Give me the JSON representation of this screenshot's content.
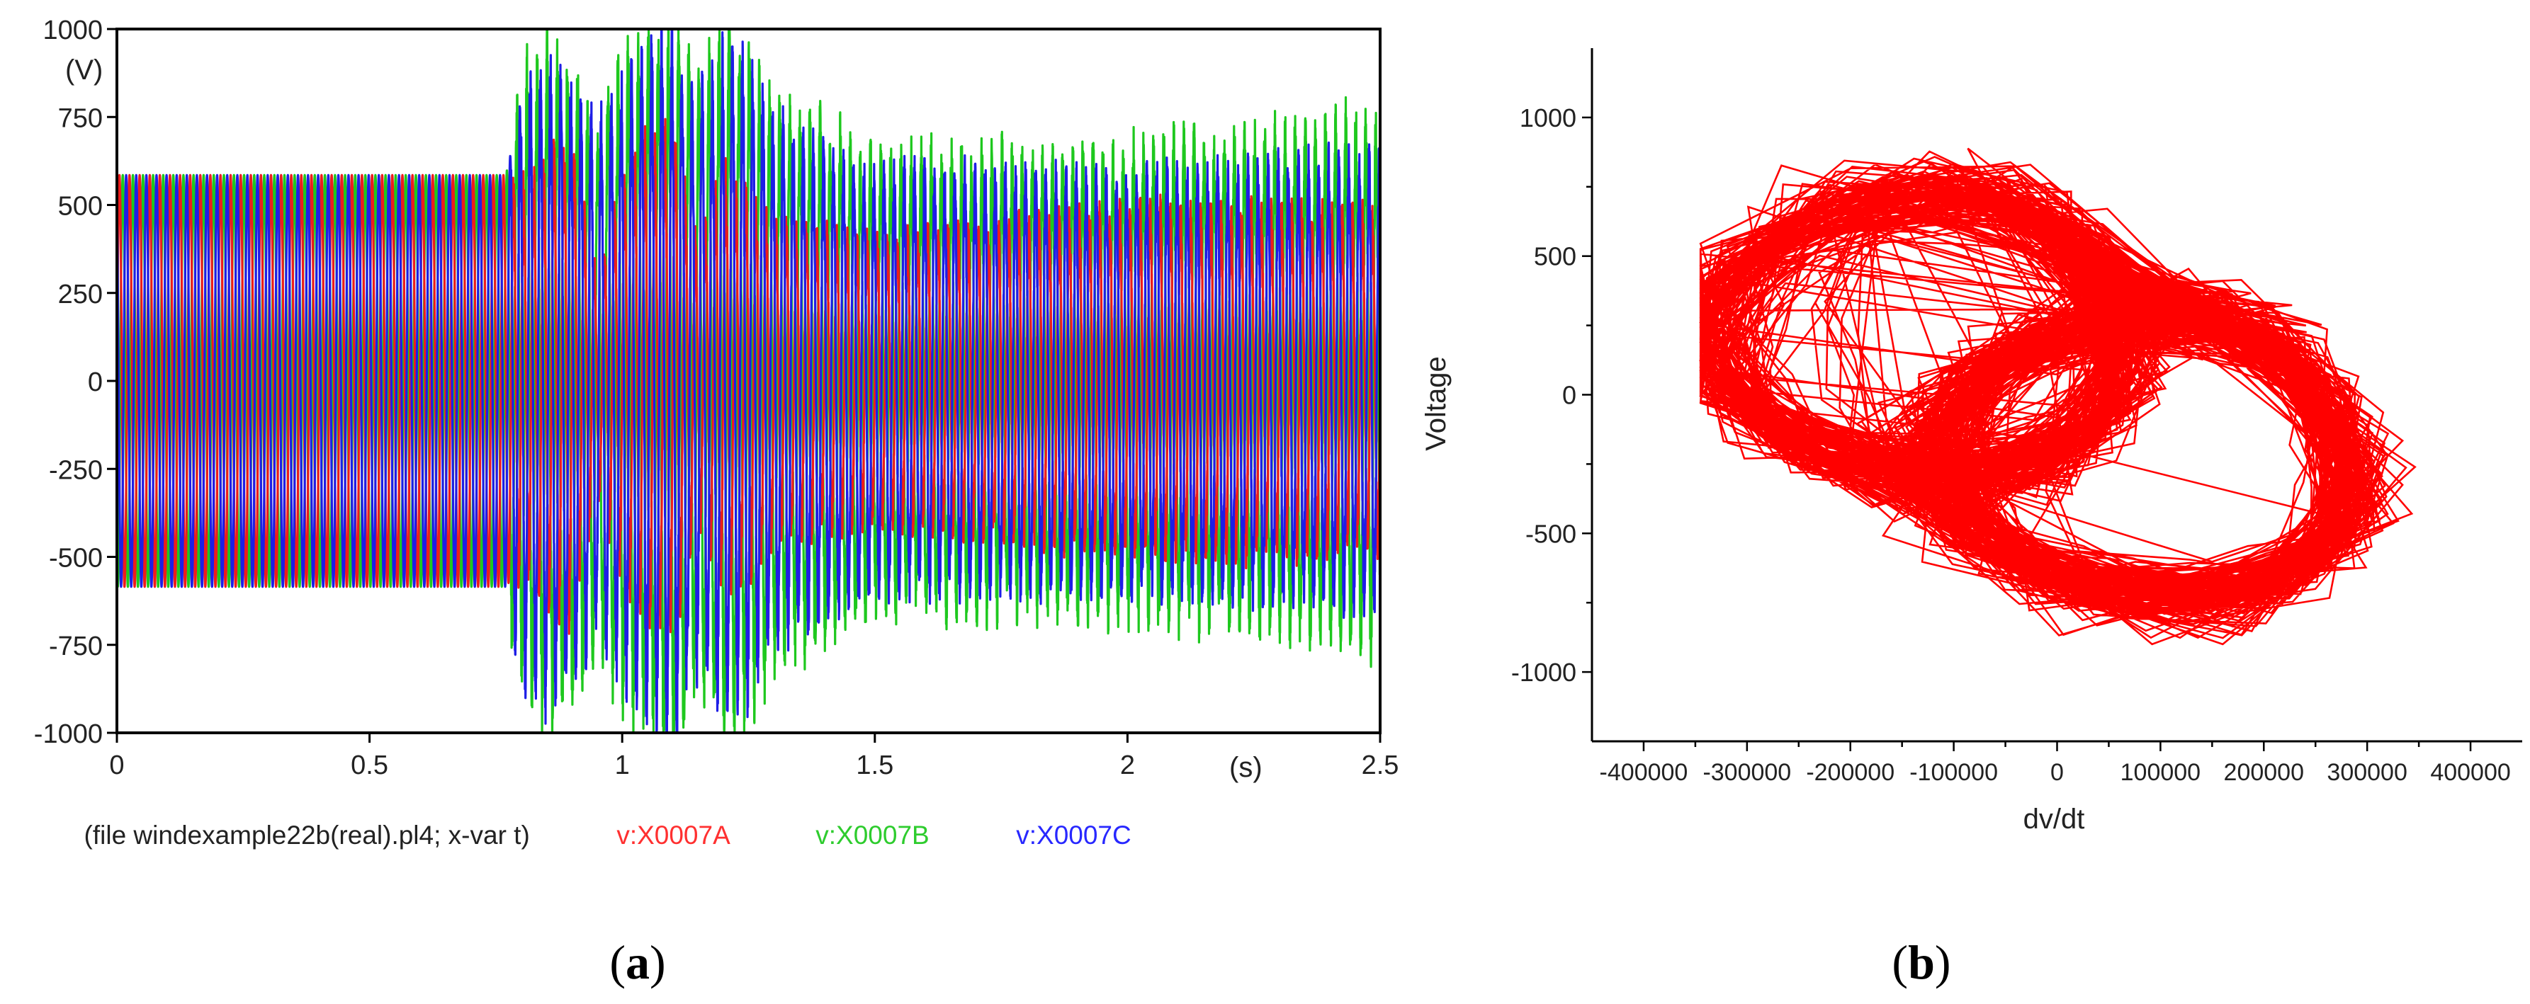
{
  "figure": {
    "panel_a_label_parts": [
      "(",
      "a",
      ")"
    ],
    "panel_b_label_parts": [
      "(",
      "b",
      ")"
    ]
  },
  "colors": {
    "phase_a": "#ee1c1c",
    "phase_b": "#1ec81e",
    "phase_c": "#1e1ee6",
    "phase_a_label": "#ff3030",
    "phase_b_label": "#2ecc2e",
    "phase_c_label": "#2828ff",
    "phase_plot": "#ff0000",
    "axis": "#000000",
    "tick_text_a": "#222222"
  },
  "chart_data": [
    {
      "panel": "a",
      "type": "line",
      "ylabel": "(V)",
      "xlabel": "(s)",
      "xlim": [
        0,
        2.5
      ],
      "ylim": [
        -1000,
        1000
      ],
      "xticks": [
        0,
        0.5,
        1,
        1.5,
        2,
        2.5
      ],
      "xtick_labels": [
        "0",
        "0.5",
        "1",
        "1.5",
        "2",
        "2.5"
      ],
      "yticks": [
        1000,
        750,
        500,
        250,
        0,
        -250,
        -500,
        -750,
        -1000
      ],
      "ytick_labels": [
        "1000",
        "750",
        "500",
        "250",
        "0",
        "-250",
        "-500",
        "-750",
        "-1000"
      ],
      "grid": false,
      "footer_prefix": "(file windexample22b(real).pl4; x-var t)",
      "series": [
        {
          "name": "v:X0007A",
          "color_key": "phase_a",
          "frequency_hz": 50,
          "phase_deg": 0,
          "envelope": {
            "t": [
              0,
              0.77,
              0.8,
              0.85,
              0.9,
              0.95,
              1.0,
              1.05,
              1.1,
              1.15,
              1.2,
              1.25,
              1.3,
              1.5,
              1.8,
              2.0,
              2.2,
              2.5
            ],
            "amplitude": [
              585,
              585,
              520,
              600,
              640,
              300,
              520,
              650,
              680,
              360,
              560,
              520,
              420,
              380,
              430,
              460,
              470,
              450
            ]
          }
        },
        {
          "name": "v:X0007B",
          "color_key": "phase_b",
          "frequency_hz": 50,
          "phase_deg": -120,
          "envelope": {
            "t": [
              0,
              0.77,
              0.8,
              0.85,
              0.9,
              0.95,
              1.0,
              1.05,
              1.1,
              1.15,
              1.2,
              1.25,
              1.3,
              1.5,
              1.8,
              2.0,
              2.2,
              2.5
            ],
            "amplitude": [
              585,
              585,
              820,
              900,
              850,
              720,
              870,
              900,
              980,
              800,
              950,
              920,
              760,
              620,
              620,
              640,
              650,
              720
            ]
          }
        },
        {
          "name": "v:X0007C",
          "color_key": "phase_c",
          "frequency_hz": 50,
          "phase_deg": 120,
          "envelope": {
            "t": [
              0,
              0.77,
              0.8,
              0.85,
              0.9,
              0.95,
              1.0,
              1.05,
              1.1,
              1.15,
              1.2,
              1.25,
              1.3,
              1.5,
              1.8,
              2.0,
              2.2,
              2.5
            ],
            "amplitude": [
              585,
              585,
              780,
              860,
              780,
              700,
              800,
              880,
              920,
              760,
              880,
              860,
              700,
              560,
              560,
              560,
              570,
              600
            ]
          }
        }
      ]
    },
    {
      "panel": "b",
      "type": "line",
      "xlabel": "dv/dt",
      "ylabel": "Voltage",
      "xlim": [
        -450000,
        450000
      ],
      "ylim": [
        -1250,
        1250
      ],
      "xticks": [
        -400000,
        -300000,
        -200000,
        -100000,
        0,
        100000,
        200000,
        300000,
        400000
      ],
      "xtick_labels": [
        "-400000",
        "-300000",
        "-200000",
        "-100000",
        "0",
        "100000",
        "200000",
        "300000",
        "400000"
      ],
      "yticks": [
        1000,
        500,
        0,
        -500,
        -1000
      ],
      "ytick_labels": [
        "1000",
        "500",
        "0",
        "-500",
        "-1000"
      ],
      "grid": false,
      "trajectory": {
        "description_shape": "double-lobed attractor",
        "x_extent": [
          -345000,
          355000
        ],
        "y_extent": [
          -900,
          920
        ],
        "lobe_centers": [
          [
            -110000,
            220
          ],
          [
            110000,
            -220
          ]
        ],
        "hole_centers": [
          [
            -30000,
            210
          ],
          [
            -30000,
            -290
          ]
        ]
      }
    }
  ]
}
